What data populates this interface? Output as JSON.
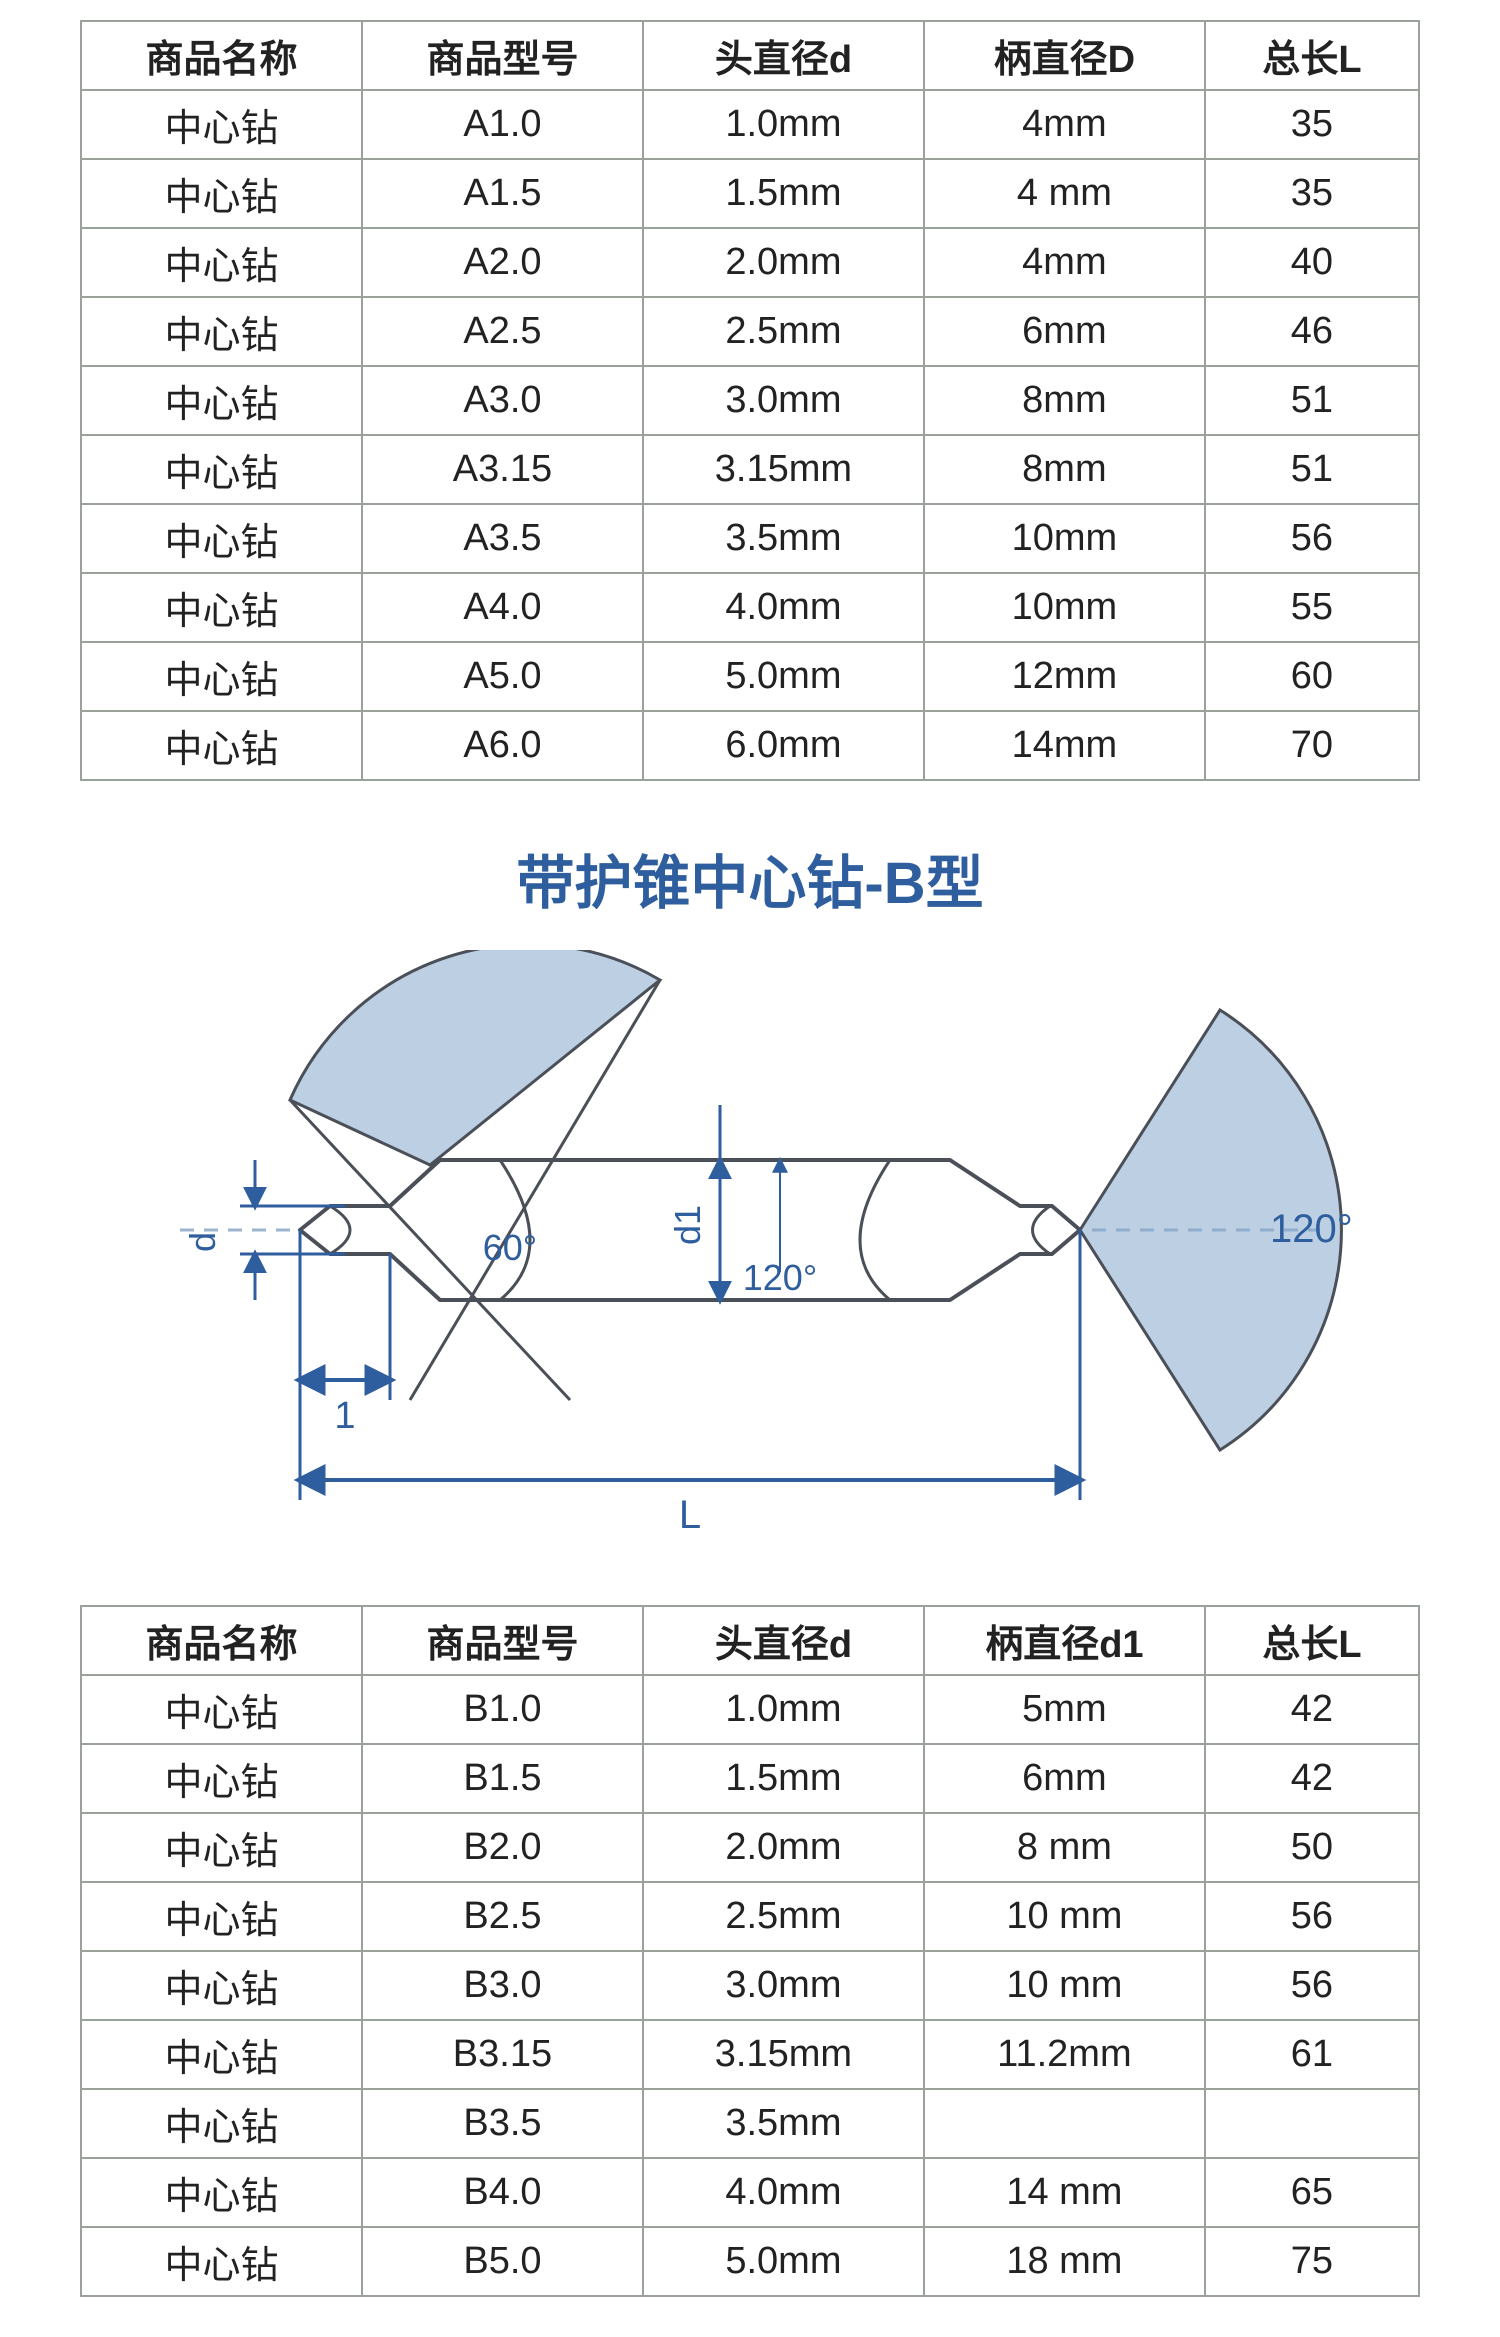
{
  "colors": {
    "table_border": "#9aa19a",
    "title_blue": "#2f5e9e",
    "diagram_stroke": "#4a4f58",
    "diagram_blue": "#2f5e9e",
    "diagram_blue_light": "#86a7cc",
    "diagram_dash": "#9db4cc"
  },
  "tableA": {
    "headers": [
      "商品名称",
      "商品型号",
      "头直径d",
      "柄直径D",
      "总长L"
    ],
    "rows": [
      [
        "中心钻",
        "A1.0",
        "1.0mm",
        "4mm",
        "35"
      ],
      [
        "中心钻",
        "A1.5",
        "1.5mm",
        "4 mm",
        "35"
      ],
      [
        "中心钻",
        "A2.0",
        "2.0mm",
        "4mm",
        "40"
      ],
      [
        "中心钻",
        "A2.5",
        "2.5mm",
        "6mm",
        "46"
      ],
      [
        "中心钻",
        "A3.0",
        "3.0mm",
        "8mm",
        "51"
      ],
      [
        "中心钻",
        "A3.15",
        "3.15mm",
        "8mm",
        "51"
      ],
      [
        "中心钻",
        "A3.5",
        "3.5mm",
        "10mm",
        "56"
      ],
      [
        "中心钻",
        "A4.0",
        "4.0mm",
        "10mm",
        "55"
      ],
      [
        "中心钻",
        "A5.0",
        "5.0mm",
        "12mm",
        "60"
      ],
      [
        "中心钻",
        "A6.0",
        "6.0mm",
        "14mm",
        "70"
      ]
    ]
  },
  "sectionB": {
    "title": "带护锥中心钻-B型",
    "diagram": {
      "label_d": "d",
      "label_d1": "d1",
      "label_one": "1",
      "label_L": "L",
      "angle60": "60°",
      "angle120_inner": "120°",
      "angle120_right": "120°"
    }
  },
  "tableB": {
    "headers": [
      "商品名称",
      "商品型号",
      "头直径d",
      "柄直径d1",
      "总长L"
    ],
    "rows": [
      [
        "中心钻",
        "B1.0",
        "1.0mm",
        "5mm",
        "42"
      ],
      [
        "中心钻",
        "B1.5",
        "1.5mm",
        "6mm",
        "42"
      ],
      [
        "中心钻",
        "B2.0",
        "2.0mm",
        "8 mm",
        "50"
      ],
      [
        "中心钻",
        "B2.5",
        "2.5mm",
        "10 mm",
        "56"
      ],
      [
        "中心钻",
        "B3.0",
        "3.0mm",
        "10 mm",
        "56"
      ],
      [
        "中心钻",
        "B3.15",
        "3.15mm",
        "11.2mm",
        "61"
      ],
      [
        "中心钻",
        "B3.5",
        "3.5mm",
        "",
        ""
      ],
      [
        "中心钻",
        "B4.0",
        "4.0mm",
        "14 mm",
        "65"
      ],
      [
        "中心钻",
        "B5.0",
        "5.0mm",
        "18 mm",
        "75"
      ]
    ]
  }
}
